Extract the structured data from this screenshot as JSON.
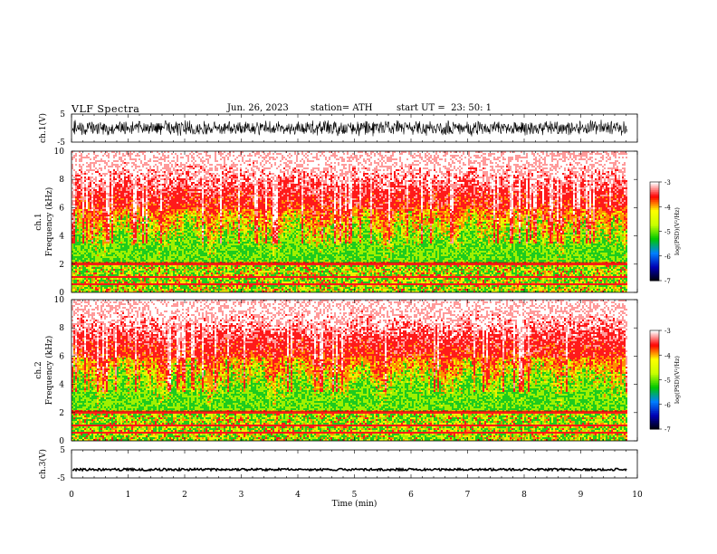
{
  "header": {
    "title": "VLF Spectra",
    "date": "Jun. 26, 2023",
    "station": "station= ATH",
    "start": "start UT =  23: 50: 1"
  },
  "colors": {
    "colormap": [
      "#000000",
      "#0000b4",
      "#0080ff",
      "#00c800",
      "#c8ff00",
      "#ffff00",
      "#ff0000",
      "#ffffff"
    ],
    "waveform": "#000000"
  },
  "chart_data": [
    {
      "type": "line",
      "name": "ch1-waveform",
      "ylabel": "ch.1(V)",
      "ylim": [
        -5,
        5
      ],
      "y_ticks": [
        "5",
        "-5"
      ],
      "description_values": {
        "amplitude_approx": 3
      },
      "xlim": [
        0,
        10
      ]
    },
    {
      "type": "heatmap",
      "name": "ch1-spectrogram",
      "ylabel_line1": "ch.1",
      "ylabel_line2": "Frequency (kHz)",
      "ylim": [
        0,
        10
      ],
      "y_ticks": [
        "0",
        "2",
        "4",
        "6",
        "8",
        "10"
      ],
      "xlim": [
        0,
        10
      ],
      "data_x_end": 9.8,
      "colorbar": {
        "label": "log(PSD)(V²/Hz)",
        "range": [
          -7,
          -3
        ],
        "ticks": [
          "-3",
          "-4",
          "-5",
          "-6",
          "-7"
        ]
      }
    },
    {
      "type": "heatmap",
      "name": "ch2-spectrogram",
      "ylabel_line1": "ch.2",
      "ylabel_line2": "Frequency (kHz)",
      "ylim": [
        0,
        10
      ],
      "y_ticks": [
        "0",
        "2",
        "4",
        "6",
        "8",
        "10"
      ],
      "xlim": [
        0,
        10
      ],
      "data_x_end": 9.8,
      "colorbar": {
        "label": "log(PSD)(V²/Hz)",
        "range": [
          -7,
          -3
        ],
        "ticks": [
          "-3",
          "-4",
          "-5",
          "-6",
          "-7"
        ]
      }
    },
    {
      "type": "line",
      "name": "ch3-waveform",
      "ylabel": "ch.3(V)",
      "ylim": [
        -5,
        5
      ],
      "y_ticks": [
        "5",
        "-5"
      ],
      "level": -2,
      "xlim": [
        0,
        10
      ],
      "xlabel": "Time (min)",
      "x_ticks": [
        "0",
        "1",
        "2",
        "3",
        "4",
        "5",
        "6",
        "7",
        "8",
        "9",
        "10"
      ]
    }
  ]
}
